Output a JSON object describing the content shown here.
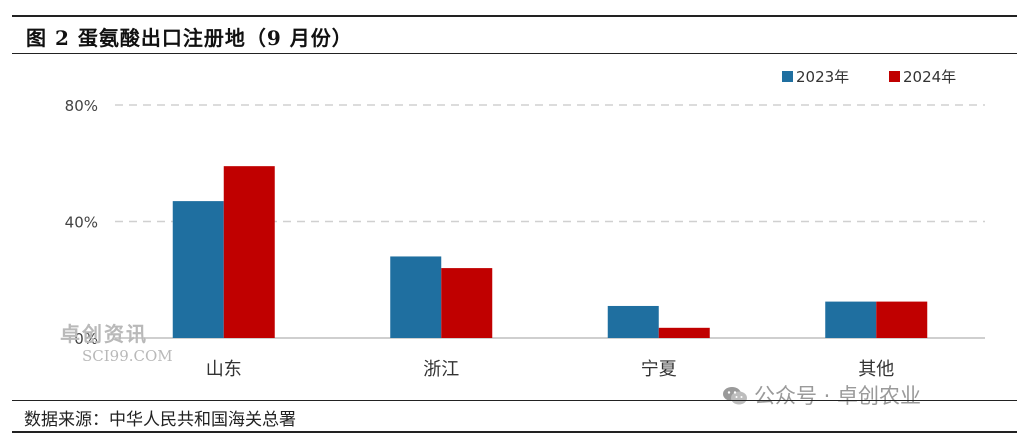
{
  "header": {
    "title": "图 2  蛋氨酸出口注册地（9 月份）"
  },
  "footer": {
    "source": "数据来源：中华人民共和国海关总署"
  },
  "watermarks": {
    "left_cn": "卓创资讯",
    "left_en": "SCI99.COM",
    "right": "公众号 · 卓创农业",
    "right_icon": "wechat-icon"
  },
  "chart_data": {
    "type": "bar",
    "categories": [
      "山东",
      "浙江",
      "宁夏",
      "其他"
    ],
    "series": [
      {
        "name": "2023年",
        "color": "#1f6fa0",
        "values": [
          47,
          28,
          11,
          12.5
        ]
      },
      {
        "name": "2024年",
        "color": "#c00000",
        "values": [
          59,
          24,
          3.5,
          12.5
        ]
      }
    ],
    "title": "",
    "xlabel": "",
    "ylabel": "",
    "ylim": [
      0,
      80
    ],
    "yticks": [
      "0%",
      "40%",
      "80%"
    ],
    "ytick_values": [
      0,
      40,
      80
    ],
    "grid": true,
    "legend": "top-right"
  }
}
